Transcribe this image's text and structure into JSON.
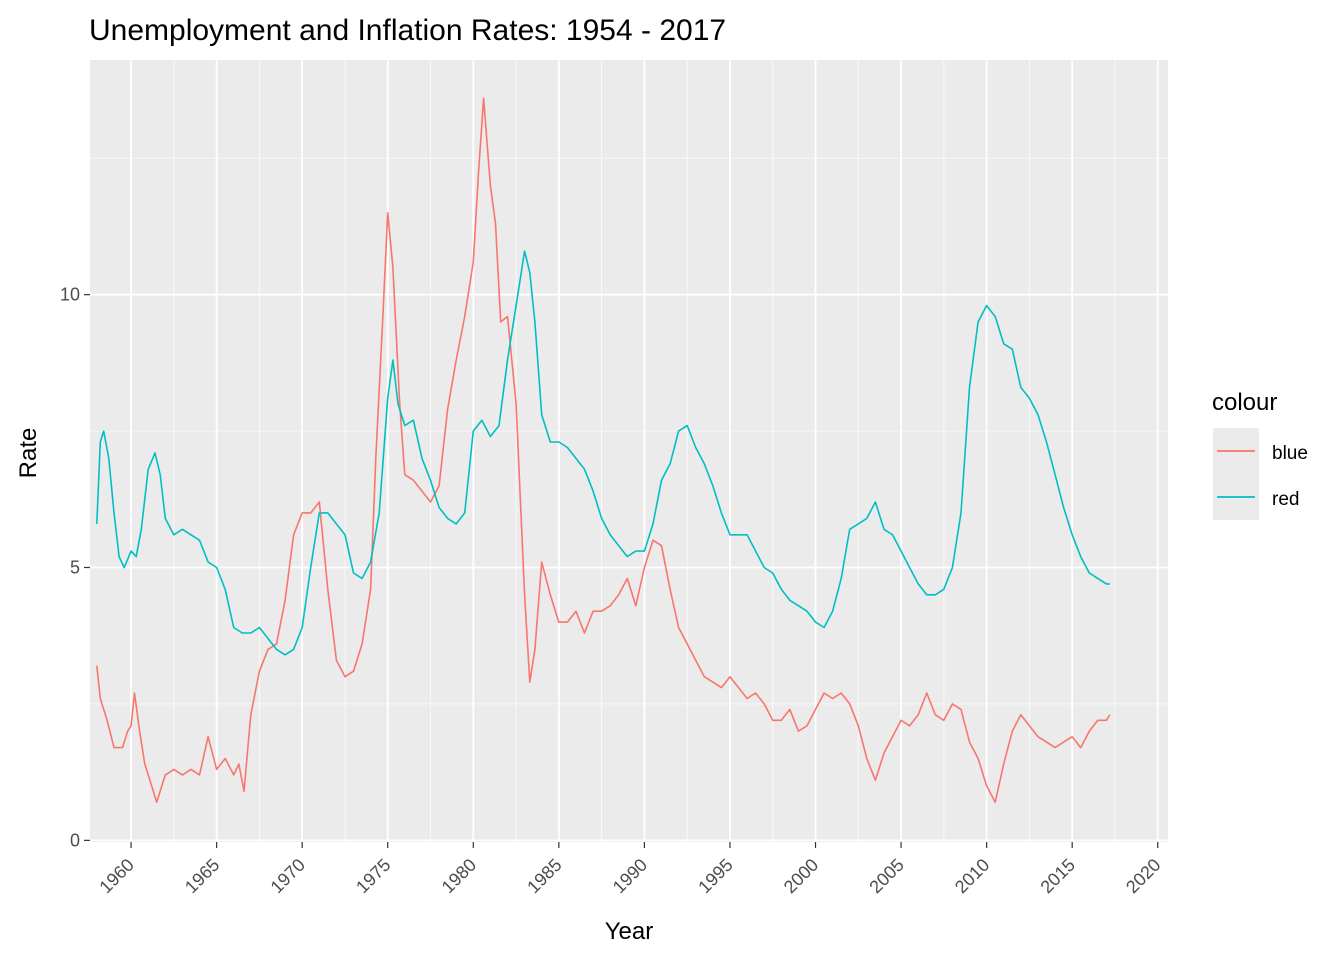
{
  "chart_data": {
    "type": "line",
    "title": "Unemployment and Inflation Rates: 1954 - 2017",
    "xlabel": "Year",
    "ylabel": "Rate",
    "xlim": [
      1957.6,
      2020.6
    ],
    "ylim": [
      -0.03,
      14.3
    ],
    "x_ticks": [
      1960,
      1965,
      1970,
      1975,
      1980,
      1985,
      1990,
      1995,
      2000,
      2005,
      2010,
      2015,
      2020
    ],
    "x_tick_labels": [
      "1960",
      "1965",
      "1970",
      "1975",
      "1980",
      "1985",
      "1990",
      "1995",
      "2000",
      "2005",
      "2010",
      "2015",
      "2020"
    ],
    "y_ticks": [
      0,
      5,
      10
    ],
    "y_tick_labels": [
      "0",
      "5",
      "10"
    ],
    "grid": true,
    "legend": {
      "title": "colour",
      "position": "right"
    },
    "series": [
      {
        "name": "blue",
        "color": "#f8766d",
        "x": [
          1958.0,
          1958.2,
          1958.4,
          1958.6,
          1959.0,
          1959.5,
          1959.8,
          1960.0,
          1960.2,
          1960.5,
          1960.8,
          1961.2,
          1961.5,
          1962.0,
          1962.5,
          1963.0,
          1963.5,
          1964.0,
          1964.5,
          1965.0,
          1965.5,
          1966.0,
          1966.3,
          1966.6,
          1967.0,
          1967.5,
          1968.0,
          1968.5,
          1969.0,
          1969.5,
          1970.0,
          1970.5,
          1971.0,
          1971.5,
          1972.0,
          1972.5,
          1973.0,
          1973.5,
          1974.0,
          1974.3,
          1974.7,
          1975.0,
          1975.3,
          1975.7,
          1976.0,
          1976.5,
          1977.0,
          1977.5,
          1978.0,
          1978.5,
          1979.0,
          1979.5,
          1980.0,
          1980.3,
          1980.6,
          1981.0,
          1981.3,
          1981.6,
          1982.0,
          1982.5,
          1983.0,
          1983.3,
          1983.6,
          1984.0,
          1984.5,
          1985.0,
          1985.5,
          1986.0,
          1986.5,
          1987.0,
          1987.5,
          1988.0,
          1988.5,
          1989.0,
          1989.5,
          1990.0,
          1990.5,
          1991.0,
          1991.5,
          1992.0,
          1992.5,
          1993.0,
          1993.5,
          1994.0,
          1994.5,
          1995.0,
          1995.5,
          1996.0,
          1996.5,
          1997.0,
          1997.5,
          1998.0,
          1998.5,
          1999.0,
          1999.5,
          2000.0,
          2000.5,
          2001.0,
          2001.5,
          2002.0,
          2002.5,
          2003.0,
          2003.5,
          2004.0,
          2004.5,
          2005.0,
          2005.5,
          2006.0,
          2006.5,
          2007.0,
          2007.5,
          2008.0,
          2008.5,
          2009.0,
          2009.5,
          2010.0,
          2010.5,
          2011.0,
          2011.5,
          2012.0,
          2012.5,
          2013.0,
          2013.5,
          2014.0,
          2014.5,
          2015.0,
          2015.5,
          2016.0,
          2016.5,
          2017.0,
          2017.2
        ],
        "y": [
          3.2,
          2.6,
          2.4,
          2.2,
          1.7,
          1.7,
          2.0,
          2.1,
          2.7,
          2.0,
          1.4,
          1.0,
          0.7,
          1.2,
          1.3,
          1.2,
          1.3,
          1.2,
          1.9,
          1.3,
          1.5,
          1.2,
          1.4,
          0.9,
          2.3,
          3.1,
          3.5,
          3.6,
          4.4,
          5.6,
          6.0,
          6.0,
          6.2,
          4.6,
          3.3,
          3.0,
          3.1,
          3.6,
          4.6,
          7.0,
          9.5,
          11.5,
          10.5,
          8.0,
          6.7,
          6.6,
          6.4,
          6.2,
          6.5,
          7.9,
          8.8,
          9.6,
          10.6,
          12.2,
          13.6,
          12.0,
          11.3,
          9.5,
          9.6,
          8.0,
          4.5,
          2.9,
          3.5,
          5.1,
          4.5,
          4.0,
          4.0,
          4.2,
          3.8,
          4.2,
          4.2,
          4.3,
          4.5,
          4.8,
          4.3,
          5.0,
          5.5,
          5.4,
          4.6,
          3.9,
          3.6,
          3.3,
          3.0,
          2.9,
          2.8,
          3.0,
          2.8,
          2.6,
          2.7,
          2.5,
          2.2,
          2.2,
          2.4,
          2.0,
          2.1,
          2.4,
          2.7,
          2.6,
          2.7,
          2.5,
          2.1,
          1.5,
          1.1,
          1.6,
          1.9,
          2.2,
          2.1,
          2.3,
          2.7,
          2.3,
          2.2,
          2.5,
          2.4,
          1.8,
          1.5,
          1.0,
          0.7,
          1.4,
          2.0,
          2.3,
          2.1,
          1.9,
          1.8,
          1.7,
          1.8,
          1.9,
          1.7,
          2.0,
          2.2,
          2.2,
          2.3
        ]
      },
      {
        "name": "red",
        "color": "#00bfc4",
        "x": [
          1958.0,
          1958.2,
          1958.4,
          1958.7,
          1959.0,
          1959.3,
          1959.6,
          1960.0,
          1960.3,
          1960.6,
          1961.0,
          1961.4,
          1961.7,
          1962.0,
          1962.5,
          1963.0,
          1963.5,
          1964.0,
          1964.5,
          1965.0,
          1965.5,
          1966.0,
          1966.5,
          1967.0,
          1967.5,
          1968.0,
          1968.5,
          1969.0,
          1969.5,
          1970.0,
          1970.5,
          1971.0,
          1971.5,
          1972.0,
          1972.5,
          1973.0,
          1973.5,
          1974.0,
          1974.5,
          1975.0,
          1975.3,
          1975.6,
          1976.0,
          1976.5,
          1977.0,
          1977.5,
          1978.0,
          1978.5,
          1979.0,
          1979.5,
          1980.0,
          1980.5,
          1981.0,
          1981.5,
          1982.0,
          1982.5,
          1983.0,
          1983.3,
          1983.6,
          1984.0,
          1984.5,
          1985.0,
          1985.5,
          1986.0,
          1986.5,
          1987.0,
          1987.5,
          1988.0,
          1988.5,
          1989.0,
          1989.5,
          1990.0,
          1990.5,
          1991.0,
          1991.5,
          1992.0,
          1992.5,
          1993.0,
          1993.5,
          1994.0,
          1994.5,
          1995.0,
          1995.5,
          1996.0,
          1996.5,
          1997.0,
          1997.5,
          1998.0,
          1998.5,
          1999.0,
          1999.5,
          2000.0,
          2000.5,
          2001.0,
          2001.5,
          2002.0,
          2002.5,
          2003.0,
          2003.5,
          2004.0,
          2004.5,
          2005.0,
          2005.5,
          2006.0,
          2006.5,
          2007.0,
          2007.5,
          2008.0,
          2008.5,
          2009.0,
          2009.5,
          2010.0,
          2010.5,
          2011.0,
          2011.5,
          2012.0,
          2012.5,
          2013.0,
          2013.5,
          2014.0,
          2014.5,
          2015.0,
          2015.5,
          2016.0,
          2016.5,
          2017.0,
          2017.2
        ],
        "y": [
          5.8,
          7.3,
          7.5,
          7.0,
          6.0,
          5.2,
          5.0,
          5.3,
          5.2,
          5.7,
          6.8,
          7.1,
          6.7,
          5.9,
          5.6,
          5.7,
          5.6,
          5.5,
          5.1,
          5.0,
          4.6,
          3.9,
          3.8,
          3.8,
          3.9,
          3.7,
          3.5,
          3.4,
          3.5,
          3.9,
          5.0,
          6.0,
          6.0,
          5.8,
          5.6,
          4.9,
          4.8,
          5.1,
          6.0,
          8.1,
          8.8,
          8.0,
          7.6,
          7.7,
          7.0,
          6.6,
          6.1,
          5.9,
          5.8,
          6.0,
          7.5,
          7.7,
          7.4,
          7.6,
          8.8,
          9.8,
          10.8,
          10.4,
          9.5,
          7.8,
          7.3,
          7.3,
          7.2,
          7.0,
          6.8,
          6.4,
          5.9,
          5.6,
          5.4,
          5.2,
          5.3,
          5.3,
          5.8,
          6.6,
          6.9,
          7.5,
          7.6,
          7.2,
          6.9,
          6.5,
          6.0,
          5.6,
          5.6,
          5.6,
          5.3,
          5.0,
          4.9,
          4.6,
          4.4,
          4.3,
          4.2,
          4.0,
          3.9,
          4.2,
          4.8,
          5.7,
          5.8,
          5.9,
          6.2,
          5.7,
          5.6,
          5.3,
          5.0,
          4.7,
          4.5,
          4.5,
          4.6,
          5.0,
          6.0,
          8.3,
          9.5,
          9.8,
          9.6,
          9.1,
          9.0,
          8.3,
          8.1,
          7.8,
          7.3,
          6.7,
          6.1,
          5.6,
          5.2,
          4.9,
          4.8,
          4.7,
          4.7
        ]
      }
    ]
  }
}
